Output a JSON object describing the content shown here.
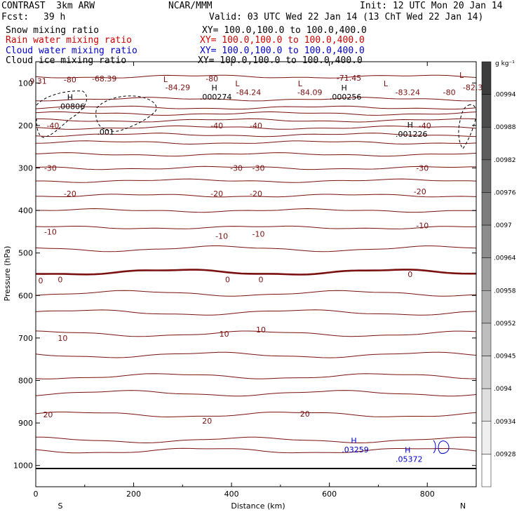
{
  "header": {
    "model": "CONTRAST  3km ARW",
    "org": "NCAR/MMM",
    "init": "Init: 12 UTC Mon 20 Jan 14",
    "fcst_label": "Fcst:",
    "fcst_value": "39 h",
    "valid": "Valid: 03 UTC Wed 22 Jan 14 (13 ChT Wed 22 Jan 14)"
  },
  "legend": [
    {
      "name": "Snow mixing ratio",
      "xy": "XY= 100.0,100.0 to 100.0,400.0",
      "color": "#000000"
    },
    {
      "name": "Rain water mixing ratio",
      "xy": "XY= 100.0,100.0 to 100.0,400.0",
      "color": "#d00000"
    },
    {
      "name": "Cloud water mixing ratio",
      "xy": "XY= 100.0,100.0 to 100.0,400.0",
      "color": "#0000cc"
    },
    {
      "name": "Cloud ice mixing ratio",
      "xy": "XY= 100.0,100.0 to 100.0,400.0",
      "color": "#000000"
    }
  ],
  "colorbar": {
    "unit": "g kg⁻¹",
    "labels": [
      ".00994",
      ".00988",
      ".00982",
      ".00976",
      ".0097",
      ".00964",
      ".00958",
      ".00952",
      ".00945",
      ".0094",
      ".00934",
      ".00928"
    ]
  },
  "chart_data": {
    "type": "contour",
    "xlabel": "Distance (km)",
    "ylabel": "Pressure (hPa)",
    "xlim": [
      0,
      900
    ],
    "ylim": [
      1050,
      50
    ],
    "xticks": [
      0,
      200,
      400,
      600,
      800
    ],
    "yticks": [
      100,
      200,
      300,
      400,
      500,
      600,
      700,
      800,
      900,
      1000
    ],
    "x_end_labels": {
      "left": "S",
      "right": "N"
    },
    "temperature_isotherms": {
      "color": "#7a1010",
      "levels": [
        {
          "p": 85,
          "label": "-80"
        },
        {
          "p": 138,
          "label": "-80"
        },
        {
          "p": 158
        },
        {
          "p": 172
        },
        {
          "p": 188
        },
        {
          "p": 205,
          "label": "-40"
        },
        {
          "p": 222
        },
        {
          "p": 240,
          "label": "-30"
        },
        {
          "p": 268
        },
        {
          "p": 300,
          "label": "-30"
        },
        {
          "p": 330
        },
        {
          "p": 365,
          "label": "-20"
        },
        {
          "p": 400
        },
        {
          "p": 440,
          "label": "-10"
        },
        {
          "p": 490
        },
        {
          "p": 545,
          "label": "0",
          "bold": true
        },
        {
          "p": 595
        },
        {
          "p": 640
        },
        {
          "p": 690,
          "label": "10"
        },
        {
          "p": 740
        },
        {
          "p": 790
        },
        {
          "p": 830
        },
        {
          "p": 880,
          "label": "20"
        },
        {
          "p": 940
        },
        {
          "p": 965
        }
      ],
      "labels": [
        {
          "x": 5,
          "p": 95,
          "text": "9.31"
        },
        {
          "x": 70,
          "p": 92,
          "text": "-80"
        },
        {
          "x": 140,
          "p": 90,
          "text": "-68.39"
        },
        {
          "x": 360,
          "p": 90,
          "text": "-80"
        },
        {
          "x": 640,
          "p": 88,
          "text": "-71.45"
        },
        {
          "x": 893,
          "p": 110,
          "text": "-82.3"
        },
        {
          "x": 290,
          "p": 110,
          "text": "-84.29"
        },
        {
          "x": 435,
          "p": 122,
          "text": "-84.24"
        },
        {
          "x": 560,
          "p": 122,
          "text": "-84.09"
        },
        {
          "x": 760,
          "p": 122,
          "text": "-83.24"
        },
        {
          "x": 845,
          "p": 122,
          "text": "-80"
        },
        {
          "x": 35,
          "p": 200,
          "text": "-40"
        },
        {
          "x": 370,
          "p": 200,
          "text": "-40"
        },
        {
          "x": 450,
          "p": 200,
          "text": "-40"
        },
        {
          "x": 795,
          "p": 200,
          "text": "-40"
        },
        {
          "x": 30,
          "p": 300,
          "text": "-30"
        },
        {
          "x": 410,
          "p": 300,
          "text": "-30"
        },
        {
          "x": 455,
          "p": 300,
          "text": "-30"
        },
        {
          "x": 790,
          "p": 300,
          "text": "-30"
        },
        {
          "x": 70,
          "p": 360,
          "text": "-20"
        },
        {
          "x": 370,
          "p": 360,
          "text": "-20"
        },
        {
          "x": 450,
          "p": 360,
          "text": "-20"
        },
        {
          "x": 785,
          "p": 355,
          "text": "-20"
        },
        {
          "x": 30,
          "p": 450,
          "text": "-10"
        },
        {
          "x": 380,
          "p": 460,
          "text": "-10"
        },
        {
          "x": 455,
          "p": 455,
          "text": "-10"
        },
        {
          "x": 790,
          "p": 435,
          "text": "-10"
        },
        {
          "x": 10,
          "p": 565,
          "text": "0"
        },
        {
          "x": 50,
          "p": 562,
          "text": "0"
        },
        {
          "x": 392,
          "p": 562,
          "text": "0"
        },
        {
          "x": 460,
          "p": 562,
          "text": "0"
        },
        {
          "x": 765,
          "p": 550,
          "text": "0"
        },
        {
          "x": 55,
          "p": 700,
          "text": "10"
        },
        {
          "x": 385,
          "p": 690,
          "text": "10"
        },
        {
          "x": 460,
          "p": 680,
          "text": "10"
        },
        {
          "x": 25,
          "p": 880,
          "text": "20"
        },
        {
          "x": 350,
          "p": 895,
          "text": "20"
        },
        {
          "x": 550,
          "p": 878,
          "text": "20"
        }
      ]
    },
    "extrema": [
      {
        "kind": "L",
        "x": 265,
        "p": 98,
        "value": "",
        "color": "#7a1010"
      },
      {
        "kind": "L",
        "x": 412,
        "p": 108,
        "value": "",
        "color": "#7a1010"
      },
      {
        "kind": "L",
        "x": 540,
        "p": 108,
        "value": "",
        "color": "#7a1010"
      },
      {
        "kind": "L",
        "x": 715,
        "p": 108,
        "value": "",
        "color": "#7a1010"
      },
      {
        "kind": "L",
        "x": 870,
        "p": 88,
        "value": "",
        "color": "#7a1010"
      },
      {
        "kind": "H",
        "x": 70,
        "p": 140,
        "value": ".00806",
        "color": "#000000"
      },
      {
        "kind": "H",
        "x": 365,
        "p": 118,
        "value": ".000274",
        "color": "#000000"
      },
      {
        "kind": "H",
        "x": 630,
        "p": 118,
        "value": ".000256",
        "color": "#000000"
      },
      {
        "kind": "H",
        "x": 765,
        "p": 205,
        "value": ".001226",
        "color": "#000000"
      },
      {
        "kind": "",
        "x": 140,
        "p": 215,
        "value": ".001",
        "color": "#000000"
      },
      {
        "kind": "H",
        "x": 650,
        "p": 948,
        "value": ".03259",
        "color": "#0000cc"
      },
      {
        "kind": "H",
        "x": 760,
        "p": 970,
        "value": ".05372",
        "color": "#0000cc"
      }
    ]
  }
}
